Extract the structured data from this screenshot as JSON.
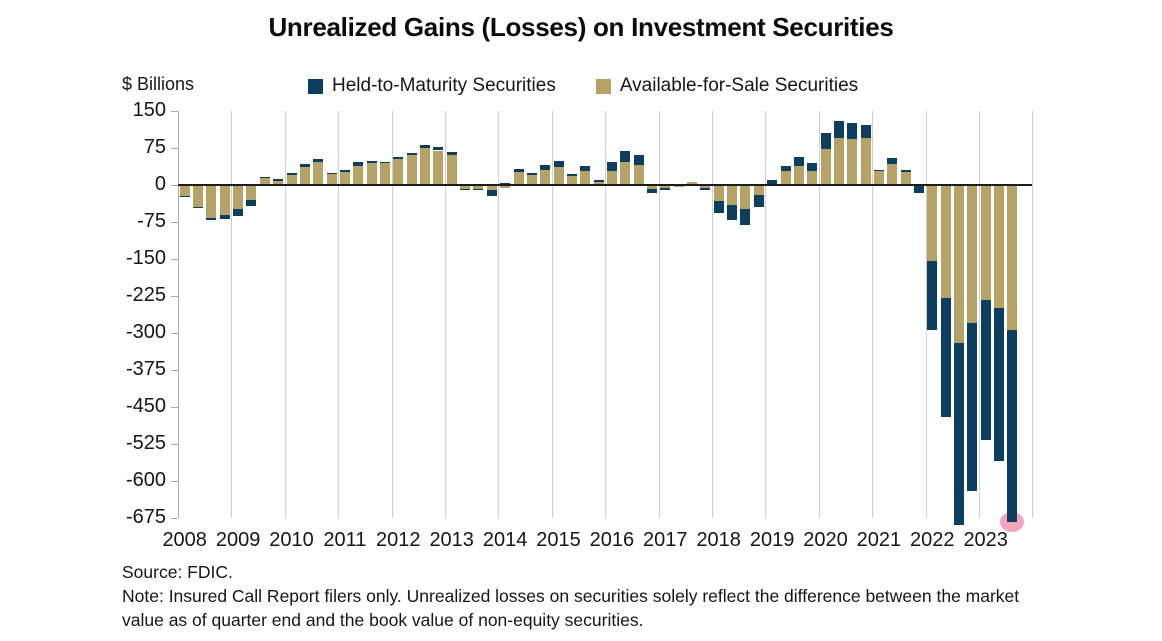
{
  "title": "Unrealized Gains (Losses) on Investment Securities",
  "y_axis": {
    "unit_label": "$ Billions",
    "tick_labels": [
      "150",
      "75",
      "0",
      "-75",
      "-150",
      "-225",
      "-300",
      "-375",
      "-450",
      "-525",
      "-600",
      "-675"
    ],
    "tick_values": [
      150,
      75,
      0,
      -75,
      -150,
      -225,
      -300,
      -375,
      -450,
      -525,
      -600,
      -675
    ]
  },
  "x_axis": {
    "year_labels": [
      "2008",
      "2009",
      "2010",
      "2011",
      "2012",
      "2013",
      "2014",
      "2015",
      "2016",
      "2017",
      "2018",
      "2019",
      "2020",
      "2021",
      "2022",
      "2023"
    ]
  },
  "legend": [
    {
      "label": "Held-to-Maturity Securities",
      "color": "#0e3e5f"
    },
    {
      "label": "Available-for-Sale Securities",
      "color": "#b5a267"
    }
  ],
  "footnotes": {
    "source": "Source: FDIC.",
    "note": "Note: Insured Call Report filers only. Unrealized losses on securities solely reflect the difference between the market value as of quarter end and the book value of non-equity securities."
  },
  "colors": {
    "htm": "#0e3e5f",
    "afs": "#b5a267",
    "highlight": "#f3a5c0",
    "gridline": "#cfcfcf",
    "zero_line": "#1b1b1b"
  },
  "chart_data": {
    "type": "bar",
    "stacked": true,
    "title": "Unrealized Gains (Losses) on Investment Securities",
    "xlabel": "",
    "ylabel": "$ Billions",
    "ylim": [
      -675,
      150
    ],
    "yticks": [
      150,
      75,
      0,
      -75,
      -150,
      -225,
      -300,
      -375,
      -450,
      -525,
      -600,
      -675
    ],
    "grid": "vertical-year-lines",
    "legend_position": "top",
    "categories": [
      "2008 Q1",
      "2008 Q2",
      "2008 Q3",
      "2008 Q4",
      "2009 Q1",
      "2009 Q2",
      "2009 Q3",
      "2009 Q4",
      "2010 Q1",
      "2010 Q2",
      "2010 Q3",
      "2010 Q4",
      "2011 Q1",
      "2011 Q2",
      "2011 Q3",
      "2011 Q4",
      "2012 Q1",
      "2012 Q2",
      "2012 Q3",
      "2012 Q4",
      "2013 Q1",
      "2013 Q2",
      "2013 Q3",
      "2013 Q4",
      "2014 Q1",
      "2014 Q2",
      "2014 Q3",
      "2014 Q4",
      "2015 Q1",
      "2015 Q2",
      "2015 Q3",
      "2015 Q4",
      "2016 Q1",
      "2016 Q2",
      "2016 Q3",
      "2016 Q4",
      "2017 Q1",
      "2017 Q2",
      "2017 Q3",
      "2017 Q4",
      "2018 Q1",
      "2018 Q2",
      "2018 Q3",
      "2018 Q4",
      "2019 Q1",
      "2019 Q2",
      "2019 Q3",
      "2019 Q4",
      "2020 Q1",
      "2020 Q2",
      "2020 Q3",
      "2020 Q4",
      "2021 Q1",
      "2021 Q2",
      "2021 Q3",
      "2021 Q4",
      "2022 Q1",
      "2022 Q2",
      "2022 Q3",
      "2022 Q4",
      "2023 Q1",
      "2023 Q2",
      "2023 Q3"
    ],
    "series": [
      {
        "name": "Held-to-Maturity Securities",
        "color": "#0e3e5f",
        "values": [
          -1,
          -2,
          -5,
          -9,
          -13,
          -11,
          1,
          3,
          5,
          6,
          5,
          3,
          3,
          8,
          5,
          3,
          4,
          4,
          6,
          8,
          7,
          -1,
          -1,
          -11,
          4,
          5,
          4,
          10,
          13,
          4,
          9,
          4,
          19,
          23,
          20,
          -8,
          -5,
          0,
          0,
          -4,
          -24,
          -30,
          -33,
          -25,
          7,
          9,
          18,
          16,
          32,
          35,
          33,
          27,
          2,
          11,
          3,
          -15,
          -140,
          -242,
          -369,
          -341,
          -284,
          -310,
          -390
        ]
      },
      {
        "name": "Available-for-Sale Securities",
        "color": "#b5a267",
        "values": [
          -23,
          -45,
          -66,
          -60,
          -49,
          -31,
          15,
          9,
          20,
          37,
          47,
          22,
          27,
          39,
          44,
          44,
          52,
          61,
          76,
          70,
          60,
          -7,
          -7,
          -11,
          -5,
          27,
          21,
          30,
          36,
          18,
          29,
          6,
          28,
          47,
          41,
          -9,
          -5,
          -3,
          7,
          -6,
          -32,
          -41,
          -49,
          -20,
          3,
          29,
          38,
          29,
          73,
          95,
          93,
          95,
          29,
          43,
          27,
          -2,
          -154,
          -228,
          -321,
          -279,
          -232,
          -249,
          -294
        ]
      }
    ],
    "annotation": {
      "type": "highlight-circle",
      "category": "2023 Q3",
      "color": "#f3a5c0",
      "description": "pink circle marking the bottom of the latest quarter bar"
    }
  }
}
